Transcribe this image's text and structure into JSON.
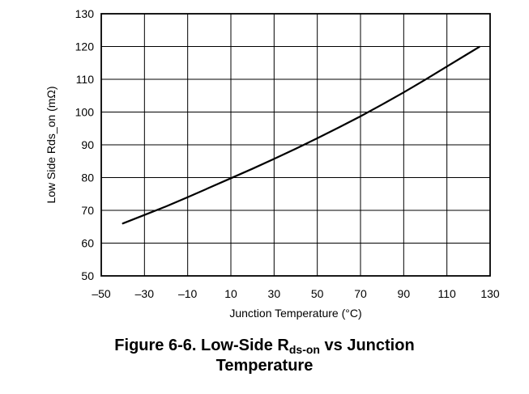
{
  "chart_data": {
    "type": "line",
    "xlabel": "Junction Temperature (°C)",
    "ylabel": "Low Side Rds_on (mΩ)",
    "xlim": [
      -50,
      130
    ],
    "ylim": [
      50,
      130
    ],
    "x_ticks": [
      "–50",
      "–30",
      "–10",
      "10",
      "30",
      "50",
      "70",
      "90",
      "110",
      "130"
    ],
    "x_tick_values": [
      -50,
      -30,
      -10,
      10,
      30,
      50,
      70,
      90,
      110,
      130
    ],
    "y_ticks": [
      "50",
      "60",
      "70",
      "80",
      "90",
      "100",
      "110",
      "120",
      "130"
    ],
    "y_tick_values": [
      50,
      60,
      70,
      80,
      90,
      100,
      110,
      120,
      130
    ],
    "grid": true,
    "series": [
      {
        "x": [
          -40,
          -30,
          -20,
          -10,
          0,
          10,
          20,
          30,
          40,
          50,
          60,
          70,
          80,
          90,
          100,
          110,
          120,
          125
        ],
        "y": [
          66,
          68.6,
          71.2,
          74,
          76.9,
          79.8,
          82.7,
          85.7,
          88.8,
          92,
          95.3,
          98.7,
          102.3,
          106,
          109.9,
          113.9,
          117.9,
          119.9
        ]
      }
    ],
    "line_color": "#000000",
    "grid_color": "#000000"
  },
  "caption": {
    "prefix": "Figure 6-6. Low-Side R",
    "subscript": "ds-on",
    "suffix": " vs Junction",
    "line2": "Temperature"
  }
}
